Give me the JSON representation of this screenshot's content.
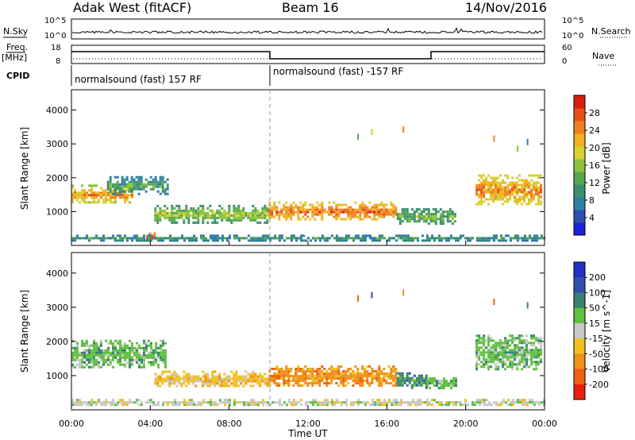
{
  "header": {
    "station": "Adak West (fitACF)",
    "beam": "Beam 16",
    "date": "14/Nov/2016"
  },
  "top_panels": {
    "nsky_label": "N.Sky",
    "nsky_ticks": [
      "10^5",
      "10^0"
    ],
    "nsearch_label": "N.Search",
    "freq_label_1": "Freq.",
    "freq_label_2": "[MHz]",
    "freq_ticks": [
      "18",
      "8"
    ],
    "nave_label": "Nave",
    "nave_ticks": [
      "60",
      "0"
    ],
    "cpid_label": "CPID",
    "cpid_segments": [
      "normalsound (fast) 157 RF",
      "normalsound (fast) -157 RF"
    ]
  },
  "axes": {
    "ylabel": "Slant Range [km]",
    "yticks": [
      "1000",
      "2000",
      "3000",
      "4000"
    ],
    "xlabel": "Time UT",
    "xticks": [
      "00:00",
      "04:00",
      "08:00",
      "12:00",
      "16:00",
      "20:00",
      "00:00"
    ]
  },
  "chart_data": [
    {
      "type": "heatmap",
      "panel": "power",
      "x_unit": "hours UT",
      "xlim": [
        0,
        24
      ],
      "ylim": [
        0,
        4600
      ],
      "colorbar_label": "Power [dB]",
      "colorbar_ticks": [
        "4",
        "8",
        "12",
        "16",
        "20",
        "24",
        "28"
      ],
      "colorbar_values": [
        4,
        8,
        12,
        16,
        20,
        24,
        28
      ],
      "colorbar_range": [
        0,
        32
      ],
      "colors": [
        "#1a24d6",
        "#2a50b0",
        "#2e7fa2",
        "#3a9070",
        "#55a850",
        "#8cc23a",
        "#d8d030",
        "#f0b020",
        "#f08020",
        "#e85018",
        "#d82010"
      ],
      "bands": [
        {
          "t0": 0.0,
          "t1": 3.1,
          "r0": 1250,
          "r1": 1800,
          "v": 20
        },
        {
          "t0": 1.8,
          "t1": 4.9,
          "r0": 1550,
          "r1": 2050,
          "v": 10
        },
        {
          "t0": 4.2,
          "t1": 10.0,
          "r0": 700,
          "r1": 1200,
          "v": 14
        },
        {
          "t0": 10.0,
          "t1": 16.5,
          "r0": 780,
          "r1": 1300,
          "v": 23
        },
        {
          "t0": 16.5,
          "t1": 19.5,
          "r0": 650,
          "r1": 1100,
          "v": 12
        },
        {
          "t0": 20.5,
          "t1": 23.8,
          "r0": 1200,
          "r1": 2100,
          "v": 21
        },
        {
          "t0": 3.8,
          "t1": 4.4,
          "r0": 180,
          "r1": 380,
          "v": 28
        },
        {
          "t0": 0.0,
          "t1": 24.0,
          "r0": 150,
          "r1": 320,
          "v": 9
        }
      ],
      "scatter_points": [
        {
          "t": 14.5,
          "r": 3300,
          "v": 12
        },
        {
          "t": 15.2,
          "r": 3450,
          "v": 20
        },
        {
          "t": 16.8,
          "r": 3520,
          "v": 26
        },
        {
          "t": 21.4,
          "r": 3250,
          "v": 24
        },
        {
          "t": 23.1,
          "r": 3150,
          "v": 8
        },
        {
          "t": 22.6,
          "r": 2950,
          "v": 16
        }
      ],
      "beam_switch_time": 10.0
    },
    {
      "type": "heatmap",
      "panel": "velocity",
      "x_unit": "hours UT",
      "xlim": [
        0,
        24
      ],
      "ylim": [
        0,
        4600
      ],
      "colorbar_label": "Velocity [m s^-1]",
      "colorbar_ticks": [
        "200",
        "100",
        "50",
        "15",
        "-15",
        "-50",
        "-100",
        "-200"
      ],
      "colors": [
        "#2030c8",
        "#3050b0",
        "#3a8070",
        "#60c040",
        "#c8c8c8",
        "#f0c020",
        "#f09018",
        "#f06010",
        "#e82010"
      ],
      "bands": [
        {
          "t0": 0.0,
          "t1": 4.8,
          "r0": 1250,
          "r1": 2050,
          "v": "15"
        },
        {
          "t0": 4.2,
          "t1": 10.0,
          "r0": 700,
          "r1": 1150,
          "v": "-50"
        },
        {
          "t0": 10.0,
          "t1": 16.5,
          "r0": 720,
          "r1": 1300,
          "v": "-100"
        },
        {
          "t0": 16.5,
          "t1": 18.0,
          "r0": 650,
          "r1": 1100,
          "v": "50"
        },
        {
          "t0": 18.0,
          "t1": 19.5,
          "r0": 650,
          "r1": 950,
          "v": "15"
        },
        {
          "t0": 20.5,
          "t1": 23.8,
          "r0": 1200,
          "r1": 2200,
          "v": "15"
        },
        {
          "t0": 0.0,
          "t1": 24.0,
          "r0": 150,
          "r1": 320,
          "v": "-15"
        }
      ],
      "scatter_points": [
        {
          "t": 14.5,
          "r": 3350,
          "v": "-200"
        },
        {
          "t": 15.2,
          "r": 3450,
          "v": "100"
        },
        {
          "t": 16.8,
          "r": 3520,
          "v": "-100"
        },
        {
          "t": 21.4,
          "r": 3250,
          "v": "-200"
        },
        {
          "t": 23.1,
          "r": 3150,
          "v": "50"
        }
      ],
      "beam_switch_time": 10.0
    }
  ]
}
